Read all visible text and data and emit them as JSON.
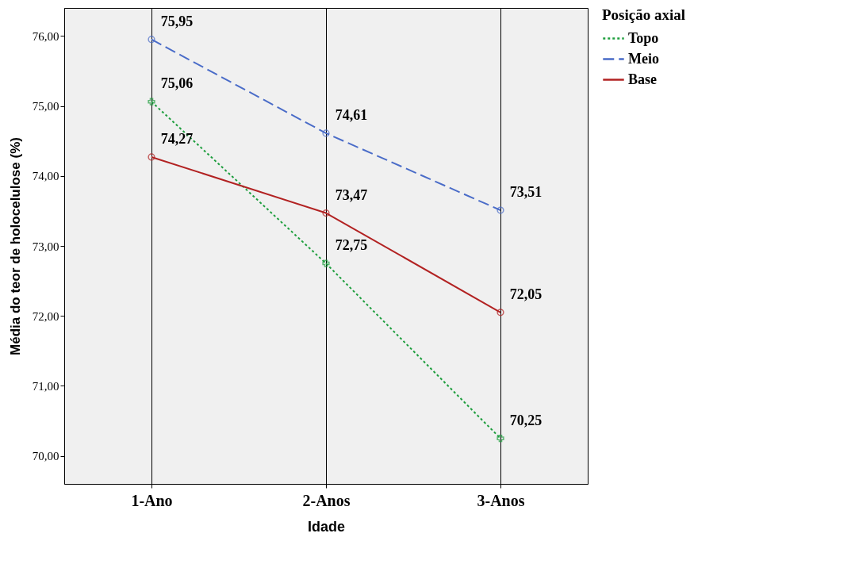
{
  "chart_data": {
    "type": "line",
    "xlabel": "Idade",
    "ylabel": "Média do teor de holocelulose (%)",
    "legend_title": "Posição axial",
    "categories": [
      "1-Ano",
      "2-Anos",
      "3-Anos"
    ],
    "series": [
      {
        "name": "Topo",
        "color": "#1e9e3e",
        "line_style": "dotted",
        "marker": "cross",
        "values": [
          75.06,
          72.75,
          70.25
        ],
        "value_labels": [
          "75,06",
          "72,75",
          "70,25"
        ]
      },
      {
        "name": "Meio",
        "color": "#4a6cc8",
        "line_style": "dashed",
        "marker": "circle",
        "values": [
          75.95,
          74.61,
          73.51
        ],
        "value_labels": [
          "75,95",
          "74,61",
          "73,51"
        ]
      },
      {
        "name": "Base",
        "color": "#b22222",
        "line_style": "solid",
        "marker": "circle",
        "values": [
          74.27,
          73.47,
          72.05
        ],
        "value_labels": [
          "74,27",
          "73,47",
          "72,05"
        ]
      }
    ],
    "ylim": [
      69.6,
      76.4
    ],
    "yticks": [
      {
        "value": 70,
        "label": "70,00"
      },
      {
        "value": 71,
        "label": "71,00"
      },
      {
        "value": 72,
        "label": "72,00"
      },
      {
        "value": 73,
        "label": "73,00"
      },
      {
        "value": 74,
        "label": "74,00"
      },
      {
        "value": 75,
        "label": "75,00"
      },
      {
        "value": 76,
        "label": "76,00"
      }
    ],
    "grid": "x",
    "legend": "right"
  }
}
